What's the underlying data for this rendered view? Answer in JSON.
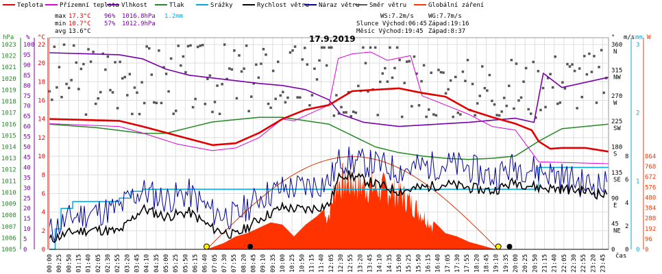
{
  "legend": [
    {
      "label": "Teplota",
      "color": "#e00000"
    },
    {
      "label": "Přízemní teplota",
      "color": "#dd00dd"
    },
    {
      "label": "Vlhkost",
      "color": "#7700aa"
    },
    {
      "label": "Tlak",
      "color": "#228822"
    },
    {
      "label": "Srážky",
      "color": "#00aadd"
    },
    {
      "label": "Rychlost větru",
      "color": "#000000"
    },
    {
      "label": "Náraz větru",
      "color": "#000099"
    },
    {
      "label": "Směr větru",
      "color": "#555555"
    },
    {
      "label": "Globální záření",
      "color": "#ff3300"
    }
  ],
  "stats": {
    "max_label": "max",
    "max_temp": "17.3°C",
    "max_hum": "96%",
    "max_press": "1016.8hPa",
    "rain": "1.2mm",
    "min_label": "min",
    "min_temp": "10.7°C",
    "min_hum": "57%",
    "min_press": "1012.9hPa",
    "avg_label": "avg",
    "avg_temp": "13.6°C"
  },
  "info": {
    "ws": "WS:7.2m/s",
    "wg": "WG:7.7m/s",
    "sun": "Slunce Východ:06:45",
    "sun_set": "Západ:19:16",
    "moon": "Měsíc Východ:19:45",
    "moon_set": "Západ:8:37"
  },
  "title": "17.9.2019",
  "units": {
    "hpa": "hPa",
    "pct": "%",
    "degc": "°C",
    "deg": "°",
    "ms": "m/s",
    "mm": "mm",
    "w": "W",
    "cas": "čas"
  },
  "colors": {
    "temp": "#e00000",
    "ground": "#dd00dd",
    "hum": "#7700aa",
    "press": "#228822",
    "rain": "#00aadd",
    "wind": "#000000",
    "gust": "#000099",
    "dir": "#555555",
    "solar": "#ff3300"
  },
  "chart_data": {
    "type": "line",
    "title": "17.9.2019",
    "x_ticks": [
      "00:00",
      "00:25",
      "00:50",
      "01:15",
      "01:40",
      "02:05",
      "02:30",
      "02:55",
      "03:20",
      "03:45",
      "04:10",
      "04:35",
      "05:00",
      "05:25",
      "05:50",
      "06:15",
      "06:40",
      "07:05",
      "07:30",
      "07:55",
      "08:20",
      "08:45",
      "09:10",
      "09:35",
      "10:00",
      "10:25",
      "10:50",
      "11:15",
      "11:40",
      "12:05",
      "12:30",
      "12:55",
      "13:20",
      "13:45",
      "14:10",
      "14:35",
      "15:00",
      "15:25",
      "15:50",
      "16:15",
      "16:40",
      "17:05",
      "17:30",
      "17:55",
      "18:20",
      "18:45",
      "19:10",
      "19:35",
      "20:00",
      "20:25",
      "20:50",
      "21:15",
      "21:40",
      "22:05",
      "22:30",
      "22:55",
      "23:20",
      "23:45"
    ],
    "axes": {
      "pressure_hpa": {
        "range": [
          1005,
          1024
        ],
        "ticks": [
          "1023",
          "1022",
          "1021",
          "1020",
          "1019",
          "1018",
          "1017",
          "1016",
          "1015",
          "1014",
          "1013",
          "1012",
          "1011",
          "1010",
          "1009",
          "1008",
          "1007",
          "1006",
          "1005"
        ]
      },
      "humidity_pct": {
        "range": [
          0,
          105
        ],
        "ticks": [
          "100",
          "95",
          "90",
          "85",
          "80",
          "75",
          "70",
          "65",
          "60",
          "55",
          "50",
          "45",
          "40",
          "35",
          "30",
          "25",
          "20",
          "15",
          "10",
          "5",
          "0"
        ]
      },
      "temp_c": {
        "range": [
          0,
          22
        ],
        "ticks": [
          "22",
          "20",
          "18",
          "16",
          "14",
          "12",
          "10",
          "8",
          "6",
          "4",
          "2",
          "0"
        ]
      },
      "dir_deg": {
        "ticks": [
          {
            "v": "360",
            "c": "N"
          },
          {
            "v": "315",
            "c": "NW"
          },
          {
            "v": "270",
            "c": "W"
          },
          {
            "v": "225",
            "c": "SW"
          },
          {
            "v": "180",
            "c": "S"
          },
          {
            "v": "135",
            "c": "SE"
          },
          {
            "v": "90",
            "c": "E"
          },
          {
            "v": "45",
            "c": "NE"
          },
          {
            "v": "0",
            "c": ""
          }
        ]
      },
      "wind_ms": {
        "ticks": [
          "8",
          "6",
          "4",
          "2",
          "0"
        ]
      },
      "rain_mm": {
        "ticks": [
          "3",
          "2",
          "1",
          "0"
        ]
      },
      "solar_w": {
        "ticks": [
          "864",
          "768",
          "672",
          "576",
          "480",
          "384",
          "288",
          "192",
          "96",
          "0"
        ]
      }
    },
    "series": [
      {
        "name": "Teplota",
        "hours": [
          0,
          3,
          4,
          5.5,
          7,
          8,
          9,
          10,
          11,
          12,
          13,
          15,
          16,
          17,
          18,
          19,
          20,
          20.7,
          21,
          21.5,
          22,
          23,
          24
        ],
        "values": [
          14,
          13.8,
          13.2,
          12.2,
          11.2,
          11.4,
          12.5,
          14,
          15,
          15.5,
          17,
          17.3,
          16.8,
          16.4,
          15,
          14.2,
          13.5,
          12.8,
          11.6,
          10.8,
          10.9,
          10.9,
          10.5
        ]
      },
      {
        "name": "Přízemní teplota",
        "hours": [
          0,
          3,
          4,
          5.5,
          7,
          8,
          9,
          10,
          10.5,
          12,
          12.4,
          13,
          13.8,
          14.5,
          15.5,
          16,
          17,
          18,
          19,
          20,
          20.3,
          21,
          24
        ],
        "values": [
          13.5,
          13.2,
          12.5,
          11.3,
          10.6,
          10.9,
          12,
          14,
          13.8,
          15.5,
          20.5,
          21,
          21.2,
          20.3,
          20.8,
          16.5,
          15.5,
          14.5,
          13.2,
          12.8,
          11.8,
          9.4,
          9.2
        ]
      },
      {
        "name": "Vlhkost",
        "hours": [
          0,
          3,
          4,
          5,
          6,
          7.5,
          9,
          10,
          11,
          12,
          12.5,
          13.5,
          15,
          16.5,
          18,
          19,
          20,
          20.8,
          21.2,
          22,
          24
        ],
        "values": [
          96,
          95,
          93,
          88,
          85,
          83,
          81,
          80,
          78,
          73,
          66,
          62,
          60,
          61,
          62,
          63,
          64,
          62,
          86,
          79,
          84
        ]
      },
      {
        "name": "Tlak",
        "hours": [
          0,
          2,
          4,
          5,
          6,
          7,
          8,
          9,
          10,
          11,
          12,
          13,
          14,
          15,
          16,
          17,
          18,
          19,
          20,
          21,
          22,
          24
        ],
        "values": [
          1016,
          1015.7,
          1015.2,
          1015.2,
          1015.7,
          1016.2,
          1016.4,
          1016.6,
          1016.6,
          1016.3,
          1016,
          1015,
          1014,
          1013.5,
          1013.2,
          1013,
          1012.9,
          1013,
          1013.2,
          1014.5,
          1015.6,
          1016
        ]
      },
      {
        "name": "Srážky",
        "hours": [
          0,
          0.25,
          0.5,
          1,
          2,
          3,
          3.5,
          4,
          5,
          20.5,
          21,
          24
        ],
        "values": [
          0,
          0.3,
          0.6,
          0.7,
          0.7,
          0.75,
          0.85,
          0.88,
          0.88,
          0.88,
          1.2,
          1.2
        ]
      },
      {
        "name": "Rychlost větru",
        "hours": [
          0,
          1,
          2,
          3,
          3.5,
          4,
          5,
          6,
          7,
          8,
          9,
          10,
          11,
          12,
          12.5,
          13,
          14,
          15,
          16,
          17,
          18,
          19,
          20,
          21,
          22,
          23,
          24
        ],
        "values": [
          0.8,
          1.5,
          1.7,
          1.5,
          2.5,
          3.5,
          2.8,
          3.2,
          1.8,
          1.2,
          2.6,
          3.6,
          3.4,
          3.8,
          6.5,
          6.3,
          5.6,
          5.0,
          5.3,
          5.6,
          5.3,
          5.0,
          5.8,
          5.3,
          5.2,
          5.0,
          4.6
        ]
      },
      {
        "name": "Náraz větru",
        "hours": [
          0,
          1,
          2,
          3,
          3.5,
          4,
          5,
          6,
          7,
          8,
          9,
          10,
          11,
          12,
          12.5,
          13,
          14,
          15,
          16,
          17,
          18,
          19,
          20,
          21,
          22,
          23,
          24
        ],
        "values": [
          1.5,
          2.8,
          3.2,
          3.5,
          4.5,
          5.0,
          4.3,
          4.8,
          3.2,
          2.8,
          4.5,
          5.2,
          5.4,
          5.8,
          7.8,
          7.5,
          7.3,
          6.8,
          7.1,
          7.3,
          7.0,
          6.2,
          7.2,
          6.8,
          6.3,
          5.6,
          5.5
        ]
      },
      {
        "name": "Globální záření",
        "hours": [
          6.75,
          7.5,
          8,
          8.5,
          9,
          9.5,
          10,
          10.5,
          11,
          11.5,
          12,
          12.3,
          12.6,
          13,
          13.5,
          14,
          14.5,
          15,
          15.5,
          16,
          16.5,
          17,
          17.5,
          18,
          18.5,
          19,
          19.26
        ],
        "values": [
          0,
          60,
          120,
          150,
          200,
          250,
          230,
          120,
          230,
          310,
          420,
          780,
          820,
          800,
          760,
          740,
          720,
          680,
          560,
          420,
          260,
          150,
          120,
          70,
          40,
          10,
          0
        ]
      }
    ]
  }
}
